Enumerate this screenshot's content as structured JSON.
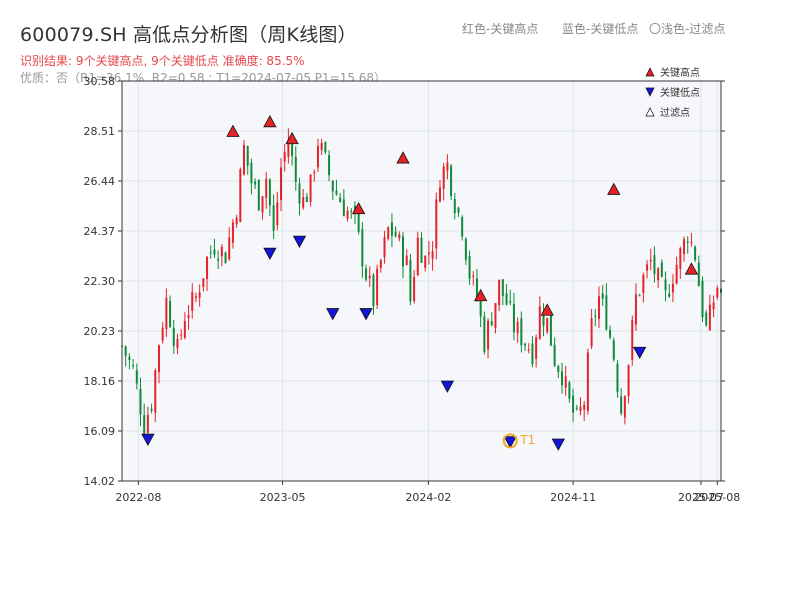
{
  "header": {
    "title": "600079.SH 高低点分析图（周K线图）",
    "hint_red": "红色-关键高点",
    "hint_blue": "蓝色-关键低点",
    "hint_filter": "〇浅色-过滤点",
    "result_line": "识别结果: 9个关键高点, 9个关键低点  准确度: 85.5%",
    "quality_line": "优质：否（R1=36.1%, R2=0.58 ; T1=2024-07-05 P1=15.68）"
  },
  "chart_data": {
    "type": "candlestick",
    "title": "600079.SH 高低点分析图（周K线图）",
    "ylim": [
      14.02,
      30.58
    ],
    "y_ticks": [
      "14.02",
      "16.09",
      "18.16",
      "20.23",
      "22.30",
      "24.37",
      "26.44",
      "28.51",
      "30.58"
    ],
    "x_ticks": [
      {
        "label": "2022-08",
        "date": "2022-08-01"
      },
      {
        "label": "2023-05",
        "date": "2023-05-01"
      },
      {
        "label": "2024-02",
        "date": "2024-02-01"
      },
      {
        "label": "2024-11",
        "date": "2024-11-01"
      },
      {
        "label": "2025-07",
        "date": "2025-07-01"
      },
      {
        "label": "2025-08",
        "date": "2025-08-01"
      }
    ],
    "x_range": [
      "2022-07-01",
      "2025-08-08"
    ],
    "close_path": [
      [
        "2022-07-01",
        19.6
      ],
      [
        "2022-07-22",
        18.6
      ],
      [
        "2022-08-12",
        16.4
      ],
      [
        "2022-08-26",
        17.3
      ],
      [
        "2022-09-09",
        19.8
      ],
      [
        "2022-09-23",
        21.5
      ],
      [
        "2022-10-14",
        19.4
      ],
      [
        "2022-10-28",
        20.9
      ],
      [
        "2022-11-18",
        21.6
      ],
      [
        "2022-12-09",
        23.2
      ],
      [
        "2022-12-23",
        23.8
      ],
      [
        "2023-01-13",
        23.4
      ],
      [
        "2023-02-03",
        25.4
      ],
      [
        "2023-02-17",
        27.8
      ],
      [
        "2023-03-03",
        26.4
      ],
      [
        "2023-03-17",
        25.7
      ],
      [
        "2023-03-31",
        26.6
      ],
      [
        "2023-04-14",
        24.2
      ],
      [
        "2023-04-28",
        27.0
      ],
      [
        "2023-05-12",
        28.2
      ],
      [
        "2023-05-26",
        26.4
      ],
      [
        "2023-06-09",
        25.6
      ],
      [
        "2023-06-23",
        26.2
      ],
      [
        "2023-07-07",
        28.1
      ],
      [
        "2023-07-21",
        27.2
      ],
      [
        "2023-08-04",
        26.2
      ],
      [
        "2023-08-25",
        25.4
      ],
      [
        "2023-09-15",
        24.7
      ],
      [
        "2023-10-06",
        22.6
      ],
      [
        "2023-10-20",
        21.5
      ],
      [
        "2023-11-03",
        23.1
      ],
      [
        "2023-11-17",
        24.4
      ],
      [
        "2023-12-01",
        24.2
      ],
      [
        "2023-12-22",
        23.0
      ],
      [
        "2023-12-29",
        21.5
      ],
      [
        "2024-01-12",
        24.0
      ],
      [
        "2024-01-26",
        23.2
      ],
      [
        "2024-02-09",
        23.9
      ],
      [
        "2024-02-23",
        26.7
      ],
      [
        "2024-03-08",
        27.1
      ],
      [
        "2024-03-22",
        25.6
      ],
      [
        "2024-04-05",
        24.6
      ],
      [
        "2024-04-19",
        22.6
      ],
      [
        "2024-05-03",
        21.6
      ],
      [
        "2024-05-17",
        19.8
      ],
      [
        "2024-05-31",
        20.9
      ],
      [
        "2024-06-14",
        22.1
      ],
      [
        "2024-06-28",
        21.4
      ],
      [
        "2024-07-12",
        20.4
      ],
      [
        "2024-07-26",
        20.0
      ],
      [
        "2024-08-16",
        19.4
      ],
      [
        "2024-08-30",
        21.1
      ],
      [
        "2024-09-13",
        20.6
      ],
      [
        "2024-09-27",
        19.1
      ],
      [
        "2024-10-11",
        18.5
      ],
      [
        "2024-10-25",
        17.2
      ],
      [
        "2024-11-08",
        16.5
      ],
      [
        "2024-11-22",
        17.3
      ],
      [
        "2024-12-06",
        20.4
      ],
      [
        "2024-12-20",
        21.6
      ],
      [
        "2025-01-03",
        20.8
      ],
      [
        "2025-01-17",
        19.2
      ],
      [
        "2025-01-31",
        17.0
      ],
      [
        "2025-02-14",
        19.0
      ],
      [
        "2025-02-28",
        21.6
      ],
      [
        "2025-03-14",
        22.4
      ],
      [
        "2025-03-28",
        23.1
      ],
      [
        "2025-04-11",
        22.3
      ],
      [
        "2025-04-25",
        21.6
      ],
      [
        "2025-05-09",
        22.6
      ],
      [
        "2025-05-23",
        23.4
      ],
      [
        "2025-06-06",
        24.3
      ],
      [
        "2025-06-20",
        23.4
      ],
      [
        "2025-06-27",
        22.2
      ],
      [
        "2025-07-04",
        21.1
      ],
      [
        "2025-07-11",
        20.3
      ],
      [
        "2025-07-18",
        20.8
      ],
      [
        "2025-07-25",
        21.5
      ],
      [
        "2025-08-01",
        22.1
      ],
      [
        "2025-08-08",
        21.8
      ]
    ],
    "key_highs": [
      {
        "date": "2023-01-27",
        "value": 28.2
      },
      {
        "date": "2023-04-07",
        "value": 28.6
      },
      {
        "date": "2023-05-19",
        "value": 27.9
      },
      {
        "date": "2023-09-22",
        "value": 25.0
      },
      {
        "date": "2023-12-15",
        "value": 27.1
      },
      {
        "date": "2024-05-10",
        "value": 21.4
      },
      {
        "date": "2024-09-13",
        "value": 20.8
      },
      {
        "date": "2025-01-17",
        "value": 25.8
      },
      {
        "date": "2025-06-13",
        "value": 22.5
      }
    ],
    "key_lows": [
      {
        "date": "2022-08-19",
        "value": 16.0
      },
      {
        "date": "2023-04-07",
        "value": 23.7
      },
      {
        "date": "2023-06-02",
        "value": 24.2
      },
      {
        "date": "2023-08-04",
        "value": 21.2
      },
      {
        "date": "2023-10-06",
        "value": 21.2
      },
      {
        "date": "2024-03-08",
        "value": 18.2
      },
      {
        "date": "2024-07-05",
        "value": 15.9
      },
      {
        "date": "2024-10-04",
        "value": 15.8
      },
      {
        "date": "2025-03-07",
        "value": 19.6
      }
    ],
    "t1_point": {
      "date": "2024-07-05",
      "value": 15.68,
      "label": "T1"
    },
    "legend": [
      {
        "label": "关键高点",
        "marker": "up",
        "color": "#e5222a"
      },
      {
        "label": "关键低点",
        "marker": "down",
        "color": "#1515d6"
      },
      {
        "label": "过滤点",
        "marker": "up-hollow",
        "color": "#ffffff"
      }
    ],
    "legend_position": "top-right",
    "grid": true,
    "colors": {
      "up": "#e5222a",
      "down": "#0e8a3a",
      "low_marker": "#1515d6",
      "t1": "#f5a623",
      "plot_bg": "#f6f7fa",
      "grid": "#dfe3ea"
    }
  }
}
